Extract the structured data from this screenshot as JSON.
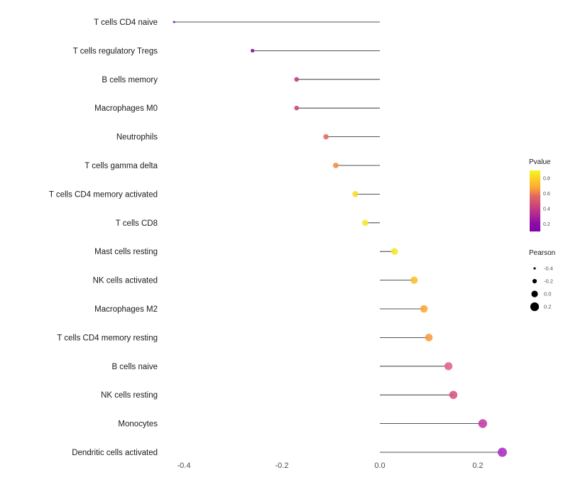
{
  "figure": {
    "background": "#ffffff"
  },
  "chart_data": {
    "type": "scatter",
    "subtype": "lollipop",
    "title": "",
    "xlabel": "",
    "ylabel": "",
    "xlim": [
      -0.47,
      0.3
    ],
    "x_ticks": [
      -0.4,
      -0.2,
      0.0,
      0.2
    ],
    "x_tick_labels": [
      "-0.4",
      "-0.2",
      "0.0",
      "0.2"
    ],
    "grid": "off",
    "legend_position": "right",
    "points": [
      {
        "label": "T cells CD4 naive",
        "pearson": -0.42,
        "pvalue": 0.15,
        "color": "#6A0AA8"
      },
      {
        "label": "T cells regulatory  Tregs",
        "pearson": -0.26,
        "pvalue": 0.25,
        "color": "#8B09A5"
      },
      {
        "label": "B cells memory",
        "pearson": -0.17,
        "pvalue": 0.45,
        "color": "#C23C81"
      },
      {
        "label": "Macrophages M0",
        "pearson": -0.17,
        "pvalue": 0.47,
        "color": "#C74479"
      },
      {
        "label": "Neutrophils",
        "pearson": -0.11,
        "pvalue": 0.6,
        "color": "#E56B5D"
      },
      {
        "label": "T cells gamma delta",
        "pearson": -0.09,
        "pvalue": 0.7,
        "color": "#F28C45"
      },
      {
        "label": "T cells CD4 memory activated",
        "pearson": -0.05,
        "pvalue": 0.9,
        "color": "#F9DC24"
      },
      {
        "label": "T cells CD8",
        "pearson": -0.03,
        "pvalue": 0.95,
        "color": "#F4EA27"
      },
      {
        "label": "Mast cells resting",
        "pearson": 0.03,
        "pvalue": 0.95,
        "color": "#F5E926"
      },
      {
        "label": "NK cells activated",
        "pearson": 0.07,
        "pvalue": 0.82,
        "color": "#FBBF2D"
      },
      {
        "label": "Macrophages M2",
        "pearson": 0.09,
        "pvalue": 0.78,
        "color": "#FBA636"
      },
      {
        "label": "T cells CD4 memory resting",
        "pearson": 0.1,
        "pvalue": 0.75,
        "color": "#F99C3E"
      },
      {
        "label": "B cells naive",
        "pearson": 0.14,
        "pvalue": 0.52,
        "color": "#E0618C"
      },
      {
        "label": "NK cells resting",
        "pearson": 0.15,
        "pvalue": 0.5,
        "color": "#D9527B"
      },
      {
        "label": "Monocytes",
        "pearson": 0.21,
        "pvalue": 0.33,
        "color": "#C13AA5"
      },
      {
        "label": "Dendritic cells activated",
        "pearson": 0.25,
        "pvalue": 0.22,
        "color": "#A82BC5"
      }
    ],
    "legend_pvalue": {
      "title": "Pvalue",
      "tick_labels": [
        "0.8",
        "0.6",
        "0.4",
        "0.2"
      ],
      "range_top": 0.9,
      "range_bottom": 0.1,
      "gradient_top_to_bottom": [
        "#F0F921",
        "#FCCE25",
        "#FCA636",
        "#E16462",
        "#CC4778",
        "#B12A90",
        "#8F0DA4",
        "#7E03A8"
      ]
    },
    "legend_pearson": {
      "title": "Pearson",
      "items": [
        {
          "label": "-0.4",
          "pearson": -0.4
        },
        {
          "label": "-0.2",
          "pearson": -0.2
        },
        {
          "label": "0.0",
          "pearson": 0.0
        },
        {
          "label": "0.2",
          "pearson": 0.2
        }
      ],
      "dot_color": "#000000"
    }
  }
}
